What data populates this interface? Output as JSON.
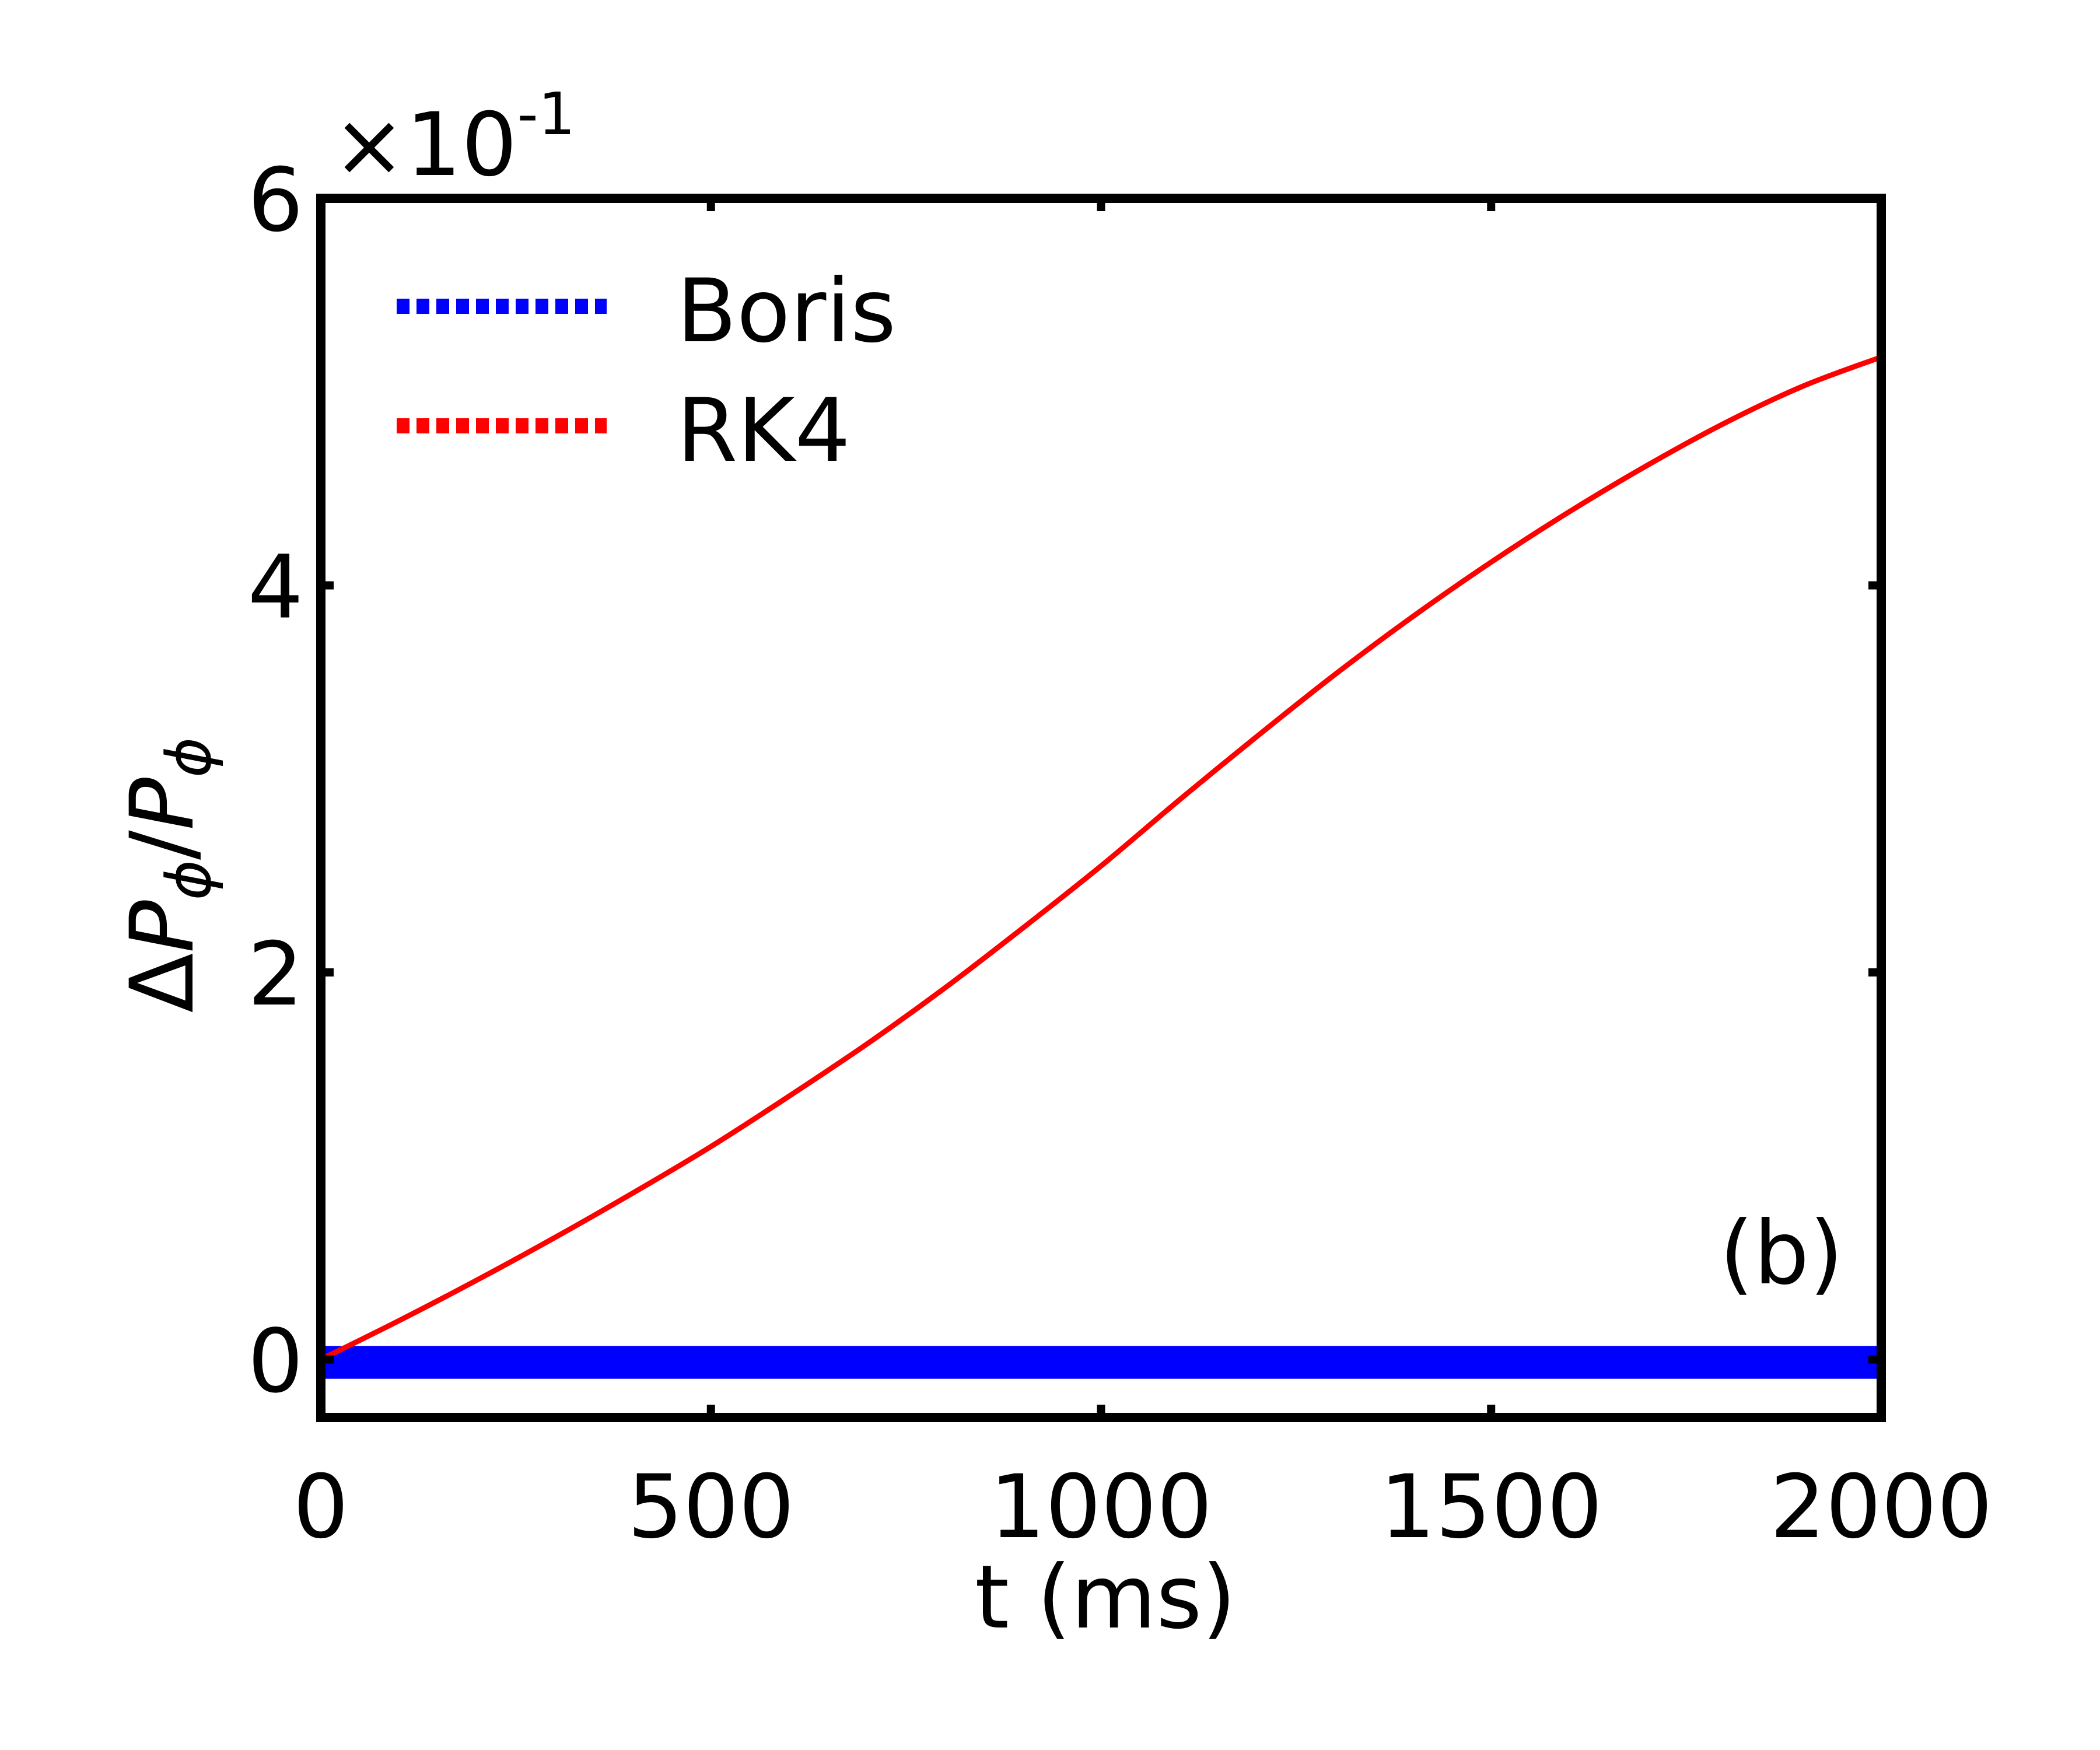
{
  "chart_data": {
    "type": "line",
    "xlabel": "t (ms)",
    "ylabel": {
      "delta": "Δ",
      "p_num": "P",
      "phi_num": "ϕ",
      "slash": "/",
      "p_den": "P",
      "phi_den": "ϕ"
    },
    "xlim": [
      0,
      2000
    ],
    "ylim": [
      -0.3,
      6.0
    ],
    "x_ticks": [
      0,
      500,
      1000,
      1500,
      2000
    ],
    "x_tick_labels": [
      "0",
      "500",
      "1000",
      "1500",
      "2000"
    ],
    "y_ticks": [
      0,
      2,
      4,
      6
    ],
    "y_tick_labels": [
      "0",
      "2",
      "4",
      "6"
    ],
    "y_scale_offset": {
      "times": "×10",
      "exponent": "-1"
    },
    "panel_label": "(b)",
    "grid": false,
    "legend_position": "top-left",
    "series": [
      {
        "name": "Boris",
        "color": "#0000ff",
        "style": "band",
        "x": [
          0,
          2000
        ],
        "y_low": [
          -0.1,
          -0.1
        ],
        "y_high": [
          0.07,
          0.07
        ]
      },
      {
        "name": "RK4",
        "color": "#ff0000",
        "style": "line",
        "x": [
          0,
          100,
          200,
          300,
          400,
          500,
          600,
          700,
          800,
          900,
          1000,
          1100,
          1200,
          1300,
          1400,
          1500,
          1600,
          1700,
          1800,
          1900,
          2000
        ],
        "y": [
          0.0,
          0.2,
          0.41,
          0.63,
          0.86,
          1.1,
          1.36,
          1.63,
          1.92,
          2.23,
          2.55,
          2.89,
          3.22,
          3.54,
          3.84,
          4.12,
          4.38,
          4.62,
          4.84,
          5.03,
          5.18
        ]
      }
    ]
  }
}
